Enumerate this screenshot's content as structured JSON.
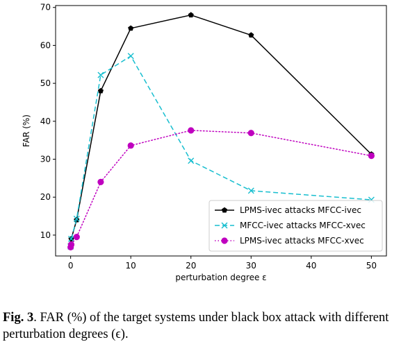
{
  "chart_data": {
    "type": "line",
    "xlabel": "perturbation degree ε",
    "ylabel": "FAR (%)",
    "xlim": [
      -2.5,
      52.5
    ],
    "ylim": [
      4.5,
      70.5
    ],
    "xticks": [
      0,
      10,
      20,
      30,
      40,
      50
    ],
    "yticks": [
      10,
      20,
      30,
      40,
      50,
      60,
      70
    ],
    "grid": false,
    "legend_position": "bottom-right",
    "series": [
      {
        "name": "LPMS-ivec attacks MFCC-ivec",
        "color": "#000000",
        "line_style": "solid",
        "marker": "pentagon",
        "x": [
          0,
          0.1,
          1,
          5,
          10,
          20,
          30,
          50
        ],
        "y": [
          7.5,
          9.0,
          14.0,
          48.0,
          64.5,
          68.0,
          62.7,
          31.3
        ]
      },
      {
        "name": "MFCC-ivec attacks MFCC-xvec",
        "color": "#17becf",
        "line_style": "dashed",
        "marker": "x",
        "x": [
          0,
          0.1,
          1,
          5,
          10,
          20,
          30,
          50
        ],
        "y": [
          7.0,
          9.0,
          14.3,
          52.2,
          57.2,
          29.6,
          21.7,
          19.3
        ]
      },
      {
        "name": "LPMS-ivec attacks MFCC-xvec",
        "color": "#bf00bf",
        "line_style": "dotted",
        "marker": "circle",
        "x": [
          0,
          0.1,
          1,
          5,
          10,
          20,
          30,
          50
        ],
        "y": [
          6.8,
          7.5,
          9.5,
          24.0,
          33.6,
          37.6,
          36.9,
          30.9
        ]
      }
    ]
  },
  "caption": {
    "label": "Fig. 3",
    "text": ". FAR (%) of the target systems under black box attack with different perturbation degrees (ϵ)."
  }
}
